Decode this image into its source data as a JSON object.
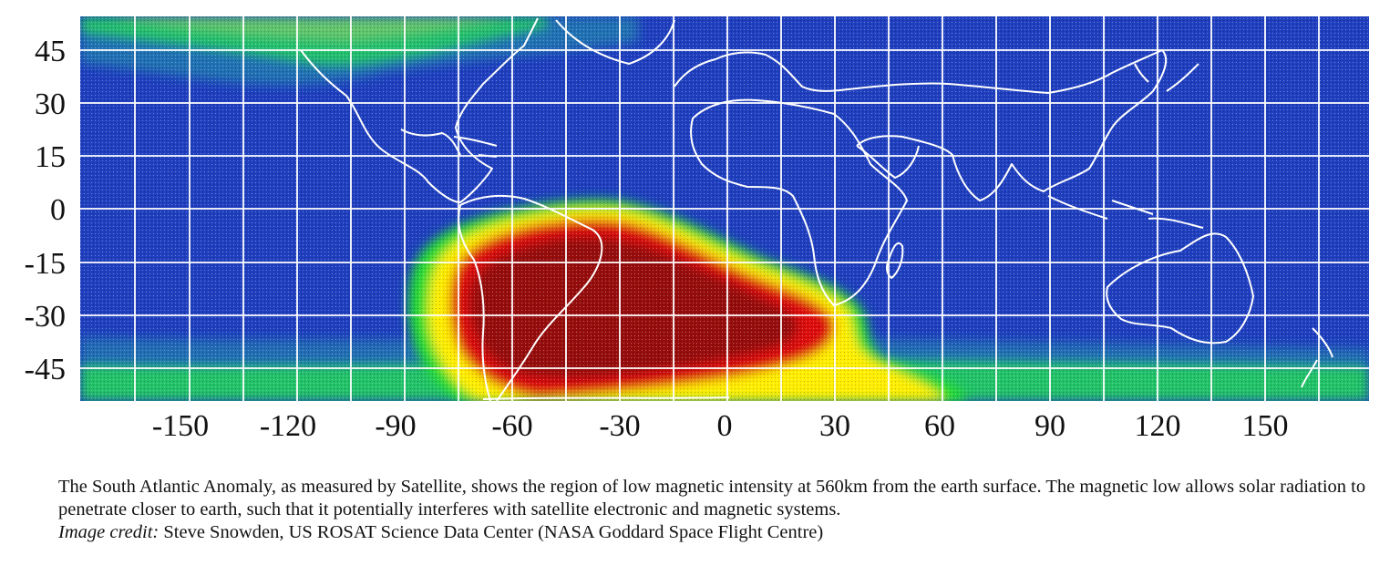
{
  "map": {
    "lat_ticks": [
      "45",
      "30",
      "15",
      "0",
      "-15",
      "-30",
      "-45"
    ],
    "lon_ticks": [
      "-150",
      "-120",
      "-90",
      "-60",
      "-30",
      "0",
      "30",
      "60",
      "90",
      "120",
      "150"
    ],
    "colors": {
      "background_field": "#1f3fbf",
      "weak_anomaly": "#22dd33",
      "moderate_anomaly": "#ffee00",
      "strong_anomaly": "#dd1111",
      "core": "#8a0a0a",
      "gridlines": "#ffffff",
      "coastlines": "#ffffff"
    }
  },
  "caption": {
    "text": "The South Atlantic Anomaly, as measured by Satellite, shows the region of low magnetic intensity at 560km from the earth surface. The magnetic low allows solar radiation to penetrate closer to earth, such that it potentially interferes with satellite electronic and magnetic systems.",
    "credit_label": "Image credit:",
    "credit_text": " Steve Snowden, US ROSAT Science Data Center (NASA Goddard Space Flight Centre)"
  }
}
